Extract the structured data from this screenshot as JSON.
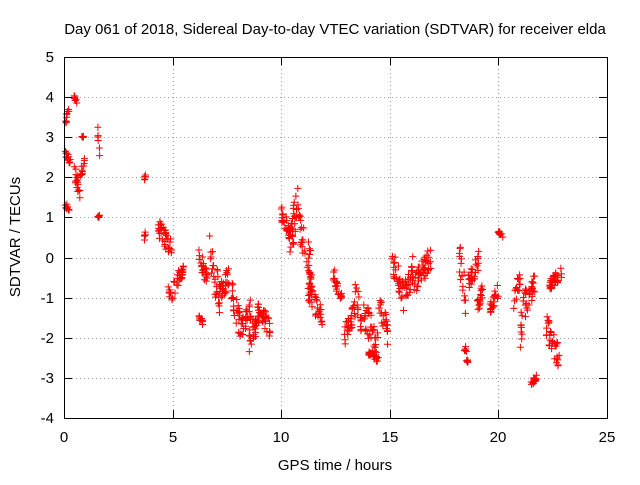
{
  "chart_data": {
    "type": "scatter",
    "title": "Day 061 of 2018, Sidereal Day-to-day VTEC variation (SDTVAR) for receiver elda",
    "xlabel": "GPS time / hours",
    "ylabel": "SDTVAR / TECUs",
    "xlim": [
      0,
      25
    ],
    "ylim": [
      -4,
      5
    ],
    "xticks": [
      0,
      5,
      10,
      15,
      20,
      25
    ],
    "yticks": [
      -4,
      -3,
      -2,
      -1,
      0,
      1,
      2,
      3,
      4,
      5
    ],
    "grid": true,
    "marker": "+",
    "colors": {
      "series": "#ff0000",
      "grid": "#a0a0a0",
      "axes": "#000000"
    },
    "series": [
      {
        "name": "elda",
        "segments": [
          {
            "x": [
              0.05,
              0.25
            ],
            "y": [
              1.1,
              1.4
            ]
          },
          {
            "x": [
              0.05,
              0.3
            ],
            "y": [
              2.3,
              2.7
            ]
          },
          {
            "x": [
              0.08,
              0.25
            ],
            "y": [
              3.3,
              3.8
            ]
          },
          {
            "x": [
              0.45,
              0.75
            ],
            "y": [
              1.4,
              2.4
            ]
          },
          {
            "x": [
              0.45,
              0.6
            ],
            "y": [
              3.8,
              4.15
            ]
          },
          {
            "x": [
              0.75,
              0.95
            ],
            "y": [
              1.9,
              2.6
            ]
          },
          {
            "x": [
              0.8,
              0.9
            ],
            "y": [
              2.95,
              3.1
            ]
          },
          {
            "x": [
              1.55,
              1.65
            ],
            "y": [
              2.4,
              3.3
            ]
          },
          {
            "x": [
              1.55,
              1.65
            ],
            "y": [
              0.95,
              1.1
            ]
          },
          {
            "x": [
              3.7,
              3.75
            ],
            "y": [
              1.9,
              2.1
            ]
          },
          {
            "x": [
              3.7,
              3.75
            ],
            "y": [
              0.4,
              0.7
            ]
          },
          {
            "x": [
              4.3,
              5.0
            ],
            "y": [
              -0.1,
              1.0
            ]
          },
          {
            "x": [
              4.8,
              5.0
            ],
            "y": [
              -1.3,
              -0.7
            ]
          },
          {
            "x": [
              5.05,
              5.5
            ],
            "y": [
              -1.0,
              0.0
            ]
          },
          {
            "x": [
              6.2,
              6.4
            ],
            "y": [
              -1.7,
              -1.4
            ]
          },
          {
            "x": [
              6.2,
              6.6
            ],
            "y": [
              -0.8,
              0.3
            ]
          },
          {
            "x": [
              6.7,
              7.2
            ],
            "y": [
              -1.6,
              0.6
            ]
          },
          {
            "x": [
              7.1,
              7.6
            ],
            "y": [
              -1.5,
              0.0
            ]
          },
          {
            "x": [
              7.7,
              8.1
            ],
            "y": [
              -2.0,
              -0.5
            ]
          },
          {
            "x": [
              8.1,
              8.6
            ],
            "y": [
              -2.2,
              -1.0
            ]
          },
          {
            "x": [
              8.5,
              9.0
            ],
            "y": [
              -2.4,
              -1.2
            ]
          },
          {
            "x": [
              8.9,
              9.5
            ],
            "y": [
              -2.0,
              -1.0
            ]
          },
          {
            "x": [
              10.0,
              10.5
            ],
            "y": [
              0.3,
              1.3
            ]
          },
          {
            "x": [
              10.3,
              10.8
            ],
            "y": [
              -0.3,
              1.9
            ]
          },
          {
            "x": [
              10.8,
              11.4
            ],
            "y": [
              -0.6,
              1.2
            ]
          },
          {
            "x": [
              11.2,
              11.9
            ],
            "y": [
              -1.8,
              -0.5
            ]
          },
          {
            "x": [
              12.4,
              12.8
            ],
            "y": [
              -1.2,
              -0.2
            ]
          },
          {
            "x": [
              12.9,
              13.4
            ],
            "y": [
              -2.3,
              -1.0
            ]
          },
          {
            "x": [
              13.4,
              13.7
            ],
            "y": [
              -2.0,
              -0.4
            ]
          },
          {
            "x": [
              13.8,
              14.5
            ],
            "y": [
              -2.8,
              -0.9
            ]
          },
          {
            "x": [
              14.0,
              14.4
            ],
            "y": [
              -2.6,
              -2.3
            ]
          },
          {
            "x": [
              14.5,
              14.9
            ],
            "y": [
              -2.2,
              -0.8
            ]
          },
          {
            "x": [
              15.1,
              15.6
            ],
            "y": [
              -1.2,
              0.3
            ]
          },
          {
            "x": [
              15.6,
              16.1
            ],
            "y": [
              -1.4,
              0.1
            ]
          },
          {
            "x": [
              16.1,
              16.9
            ],
            "y": [
              -1.0,
              0.3
            ]
          },
          {
            "x": [
              18.2,
              18.5
            ],
            "y": [
              -1.5,
              0.5
            ]
          },
          {
            "x": [
              18.4,
              18.6
            ],
            "y": [
              -2.7,
              -2.0
            ]
          },
          {
            "x": [
              18.6,
              19.1
            ],
            "y": [
              -0.9,
              0.2
            ]
          },
          {
            "x": [
              19.0,
              19.3
            ],
            "y": [
              -1.5,
              -0.5
            ]
          },
          {
            "x": [
              19.6,
              20.0
            ],
            "y": [
              -1.5,
              -0.6
            ]
          },
          {
            "x": [
              20.0,
              20.2
            ],
            "y": [
              0.5,
              0.7
            ]
          },
          {
            "x": [
              20.7,
              21.0
            ],
            "y": [
              -1.3,
              -0.3
            ]
          },
          {
            "x": [
              21.0,
              21.3
            ],
            "y": [
              -2.3,
              -0.5
            ]
          },
          {
            "x": [
              21.3,
              21.7
            ],
            "y": [
              -1.5,
              -0.3
            ]
          },
          {
            "x": [
              21.5,
              21.8
            ],
            "y": [
              -3.2,
              -2.9
            ]
          },
          {
            "x": [
              22.2,
              22.8
            ],
            "y": [
              -2.8,
              -1.4
            ]
          },
          {
            "x": [
              22.3,
              22.9
            ],
            "y": [
              -0.9,
              -0.2
            ]
          }
        ]
      }
    ]
  }
}
